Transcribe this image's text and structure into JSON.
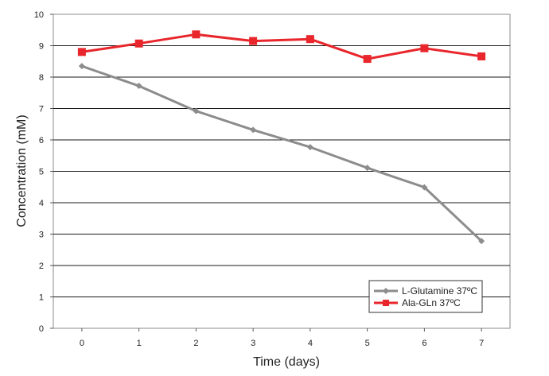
{
  "chart_data": {
    "type": "line",
    "title": "",
    "xlabel": "Time (days)",
    "ylabel": "Concentration (mM)",
    "x": [
      0,
      1,
      2,
      3,
      4,
      5,
      6,
      7
    ],
    "xlim": [
      -0.5,
      7.5
    ],
    "ylim": [
      0,
      10
    ],
    "yticks": [
      0,
      1,
      2,
      3,
      4,
      5,
      6,
      7,
      8,
      9,
      10
    ],
    "xticks": [
      0,
      1,
      2,
      3,
      4,
      5,
      6,
      7
    ],
    "grid": "horizontal",
    "legend_position": "bottom-right",
    "series": [
      {
        "name": "L-Glutamine 37ºC",
        "values": [
          8.35,
          7.72,
          6.92,
          6.32,
          5.77,
          5.11,
          4.49,
          2.78
        ],
        "color": "#8c8c8c",
        "marker": "diamond"
      },
      {
        "name": "Ala-GLn 37ºC",
        "values": [
          8.8,
          9.07,
          9.36,
          9.15,
          9.21,
          8.58,
          8.92,
          8.66
        ],
        "color": "#e8262b",
        "marker": "square"
      }
    ]
  }
}
